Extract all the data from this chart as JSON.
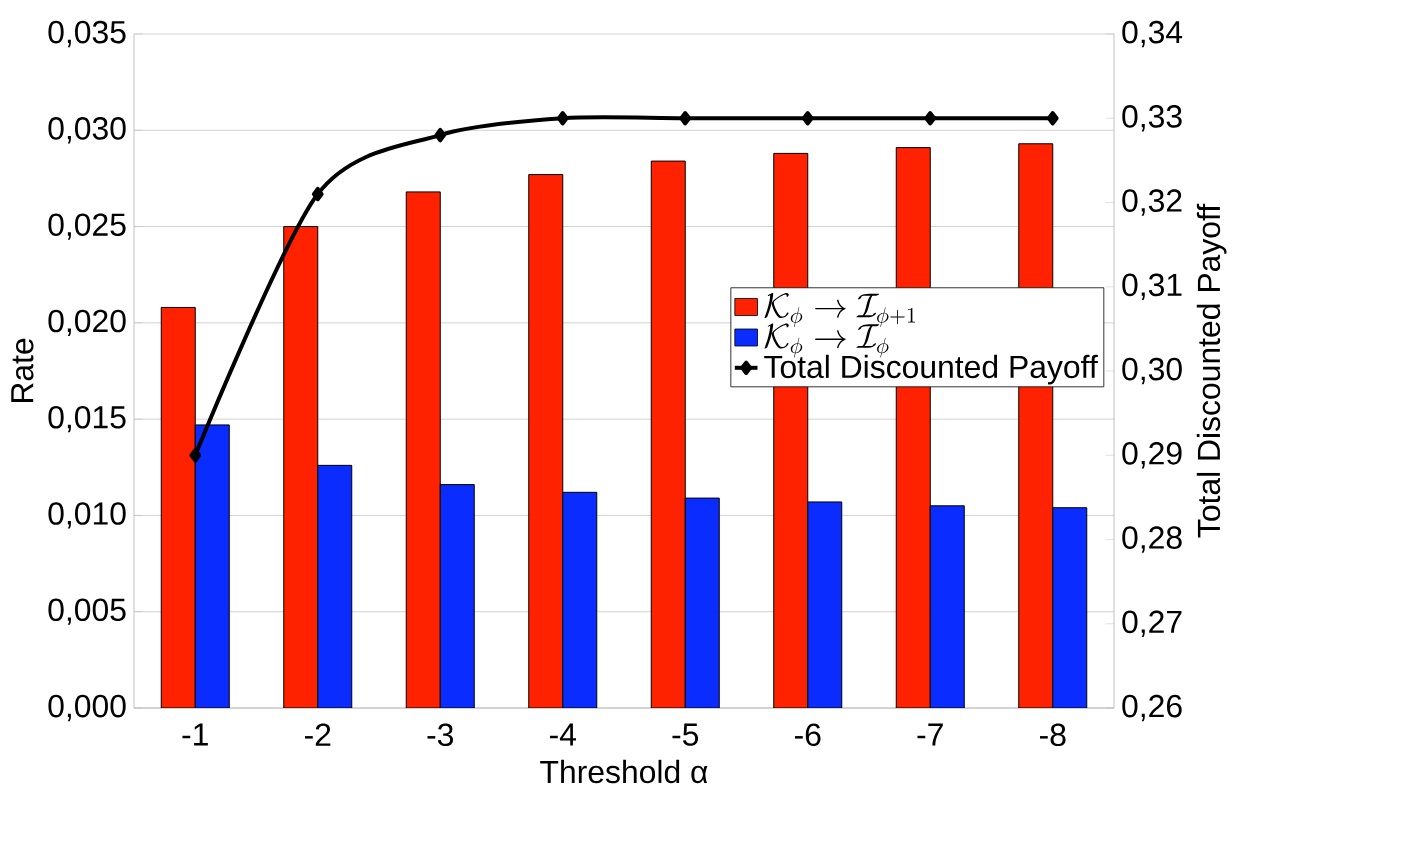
{
  "chart_data": {
    "type": "bar",
    "xlabel": "Threshold α",
    "ylabel": "Rate",
    "y2label": "Total Discounted Payoff",
    "categories": [
      "-1",
      "-2",
      "-3",
      "-4",
      "-5",
      "-6",
      "-7",
      "-8"
    ],
    "series": [
      {
        "name": "\\mathcal{K}_{\\phi} \\rightarrow \\mathcal{I}_{\\phi+1}",
        "color": "#ff2200",
        "values": [
          0.0208,
          0.025,
          0.0268,
          0.0277,
          0.0284,
          0.0288,
          0.0291,
          0.0293
        ]
      },
      {
        "name": "\\mathcal{K}_{\\phi} \\rightarrow \\mathcal{I}_{\\phi}",
        "color": "#0a2cff",
        "values": [
          0.0147,
          0.0126,
          0.0116,
          0.0112,
          0.0109,
          0.0107,
          0.0105,
          0.0104
        ]
      },
      {
        "name": "Total Discounted Payoff",
        "type": "line",
        "axis": "y2",
        "color": "#000000",
        "marker": "diamond",
        "values": [
          0.29,
          0.321,
          0.328,
          0.33,
          0.33,
          0.33,
          0.33,
          0.33
        ]
      }
    ],
    "ylim": [
      0,
      0.035
    ],
    "yticks": [
      {
        "value": 0,
        "label": "0,000"
      },
      {
        "value": 0.005,
        "label": "0,005"
      },
      {
        "value": 0.01,
        "label": "0,010"
      },
      {
        "value": 0.015,
        "label": "0,015"
      },
      {
        "value": 0.02,
        "label": "0,020"
      },
      {
        "value": 0.025,
        "label": "0,025"
      },
      {
        "value": 0.03,
        "label": "0,030"
      },
      {
        "value": 0.035,
        "label": "0,035"
      }
    ],
    "y2lim": [
      0.26,
      0.34
    ],
    "y2ticks": [
      {
        "value": 0.26,
        "label": "0,26"
      },
      {
        "value": 0.27,
        "label": "0,27"
      },
      {
        "value": 0.28,
        "label": "0,28"
      },
      {
        "value": 0.29,
        "label": "0,29"
      },
      {
        "value": 0.3,
        "label": "0,30"
      },
      {
        "value": 0.31,
        "label": "0,31"
      },
      {
        "value": 0.32,
        "label": "0,32"
      },
      {
        "value": 0.33,
        "label": "0,33"
      },
      {
        "value": 0.34,
        "label": "0,34"
      }
    ],
    "grid": "y",
    "legend": "right"
  }
}
